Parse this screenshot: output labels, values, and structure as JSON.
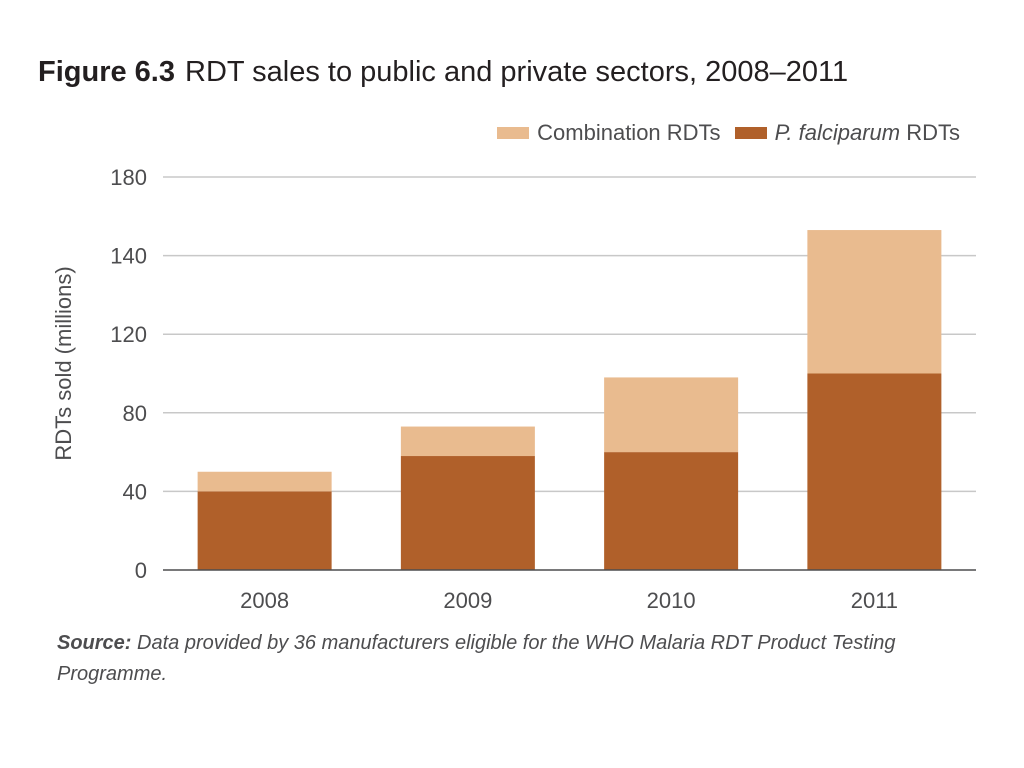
{
  "figure": {
    "number": "Figure 6.3",
    "title": "RDT sales to public and private sectors, 2008–2011"
  },
  "legend": {
    "combination_label": "Combination RDTs",
    "pf_label_italic": "P. falciparum",
    "pf_label_rest": " RDTs"
  },
  "source": {
    "label": "Source:",
    "text": " Data provided by 36 manufacturers eligible for the WHO Malaria RDT Product Testing Programme."
  },
  "colors": {
    "pf": "#b0602a",
    "combination": "#e9bb8f",
    "grid": "#c8c8c8",
    "axis": "#4d4d4f"
  },
  "chart_data": {
    "type": "bar",
    "stacked": true,
    "categories": [
      "2008",
      "2009",
      "2010",
      "2011"
    ],
    "series": [
      {
        "name": "P. falciparum RDTs",
        "values": [
          40,
          58,
          60,
          100
        ]
      },
      {
        "name": "Combination RDTs",
        "values": [
          10,
          15,
          38,
          53
        ]
      }
    ],
    "ylabel": "RDTs sold (millions)",
    "ylim": [
      0,
      180
    ],
    "yticks": [
      0,
      40,
      80,
      120,
      140,
      180
    ],
    "grid": true,
    "legend_position": "top-right"
  }
}
